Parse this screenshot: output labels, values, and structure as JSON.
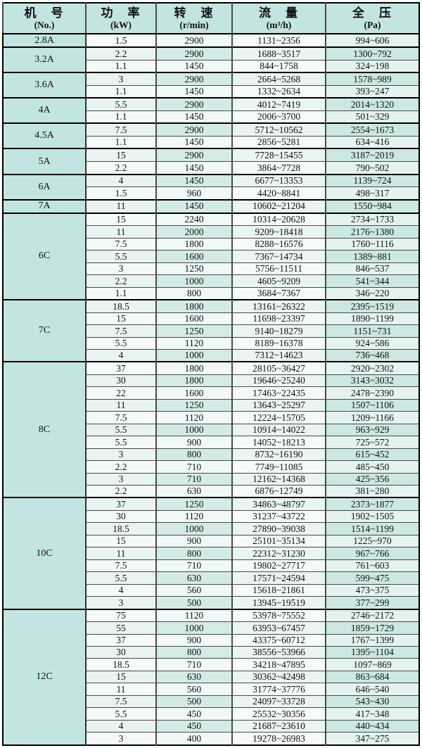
{
  "table": {
    "headers": [
      {
        "title": "机　号",
        "unit": "(No.)"
      },
      {
        "title": "功　率",
        "unit": "(kW)"
      },
      {
        "title": "转　速",
        "unit": "(r/min)"
      },
      {
        "title": "流　量",
        "unit": "(m³/h)"
      },
      {
        "title": "全　压",
        "unit": "(Pa)"
      }
    ],
    "groups": [
      {
        "model": "2.8A",
        "rows": [
          [
            "1.5",
            "2900",
            "1131~2356",
            "994~606"
          ]
        ]
      },
      {
        "model": "3.2A",
        "rows": [
          [
            "2.2",
            "2900",
            "1688~3517",
            "1300~792"
          ],
          [
            "1.1",
            "1450",
            "844~1758",
            "324~198"
          ]
        ]
      },
      {
        "model": "3.6A",
        "rows": [
          [
            "3",
            "2900",
            "2664~5268",
            "1578~989"
          ],
          [
            "1.1",
            "1450",
            "1332~2634",
            "393~247"
          ]
        ]
      },
      {
        "model": "4A",
        "rows": [
          [
            "5.5",
            "2900",
            "4012~7419",
            "2014~1320"
          ],
          [
            "1.1",
            "1450",
            "2006~3700",
            "501~329"
          ]
        ]
      },
      {
        "model": "4.5A",
        "rows": [
          [
            "7.5",
            "2900",
            "5712~10562",
            "2554~1673"
          ],
          [
            "1.1",
            "1450",
            "2856~5281",
            "634~416"
          ]
        ]
      },
      {
        "model": "5A",
        "rows": [
          [
            "15",
            "2900",
            "7728~15455",
            "3187~2019"
          ],
          [
            "2.2",
            "1450",
            "3864~7728",
            "790~502"
          ]
        ]
      },
      {
        "model": "6A",
        "rows": [
          [
            "4",
            "1450",
            "6677~13353",
            "1139~724"
          ],
          [
            "1.5",
            "960",
            "4420~8841",
            "498~317"
          ]
        ]
      },
      {
        "model": "7A",
        "rows": [
          [
            "11",
            "1450",
            "10602~21204",
            "1550~984"
          ]
        ]
      },
      {
        "model": "6C",
        "rows": [
          [
            "15",
            "2240",
            "10314~20628",
            "2734~1733"
          ],
          [
            "11",
            "2000",
            "9209~18418",
            "2176~1380"
          ],
          [
            "7.5",
            "1800",
            "8288~16576",
            "1760~1116"
          ],
          [
            "5.5",
            "1600",
            "7367~14734",
            "1389~881"
          ],
          [
            "3",
            "1250",
            "5756~11511",
            "846~537"
          ],
          [
            "2.2",
            "1000",
            "4605~9209",
            "541~344"
          ],
          [
            "1.1",
            "800",
            "3684~7367",
            "346~220"
          ]
        ]
      },
      {
        "model": "7C",
        "rows": [
          [
            "18.5",
            "1800",
            "13161~26322",
            "2395~1519"
          ],
          [
            "15",
            "1600",
            "11698~23397",
            "1890~1199"
          ],
          [
            "7.5",
            "1250",
            "9140~18279",
            "1151~731"
          ],
          [
            "5.5",
            "1120",
            "8189~16378",
            "924~586"
          ],
          [
            "4",
            "1000",
            "7312~14623",
            "736~468"
          ]
        ]
      },
      {
        "model": "8C",
        "rows": [
          [
            "37",
            "1800",
            "28105~36427",
            "2920~2302"
          ],
          [
            "30",
            "1800",
            "19646~25240",
            "3143~3032"
          ],
          [
            "22",
            "1600",
            "17463~22435",
            "2478~2390"
          ],
          [
            "11",
            "1250",
            "13643~25297",
            "1507~1106"
          ],
          [
            "7.5",
            "1120",
            "12224~15705",
            "1209~1166"
          ],
          [
            "5.5",
            "1000",
            "10914~14022",
            "963~929"
          ],
          [
            "5.5",
            "900",
            "14052~18213",
            "725~572"
          ],
          [
            "3",
            "800",
            "8732~16190",
            "615~452"
          ],
          [
            "2.2",
            "710",
            "7749~11085",
            "485~450"
          ],
          [
            "3",
            "710",
            "12162~14368",
            "425~356"
          ],
          [
            "2.2",
            "630",
            "6876~12749",
            "381~280"
          ]
        ]
      },
      {
        "model": "10C",
        "rows": [
          [
            "37",
            "1250",
            "34863~48797",
            "2373~1877"
          ],
          [
            "30",
            "1120",
            "31237~43722",
            "1902~1505"
          ],
          [
            "18.5",
            "1000",
            "27890~39038",
            "1514~1199"
          ],
          [
            "15",
            "900",
            "25101~35134",
            "1225~970"
          ],
          [
            "11",
            "800",
            "22312~31230",
            "967~766"
          ],
          [
            "7.5",
            "710",
            "19802~27717",
            "761~603"
          ],
          [
            "5.5",
            "630",
            "17571~24594",
            "599~475"
          ],
          [
            "4",
            "560",
            "15618~21861",
            "473~375"
          ],
          [
            "3",
            "500",
            "13945~19519",
            "377~299"
          ]
        ]
      },
      {
        "model": "12C",
        "rows": [
          [
            "75",
            "1120",
            "53978~75552",
            "2746~2172"
          ],
          [
            "55",
            "1000",
            "63953~67457",
            "1859~1729"
          ],
          [
            "37",
            "900",
            "43375~60712",
            "1767~1399"
          ],
          [
            "30",
            "800",
            "38556~53966",
            "1395~1104"
          ],
          [
            "18.5",
            "710",
            "34218~47895",
            "1097~869"
          ],
          [
            "15",
            "630",
            "30362~42498",
            "863~684"
          ],
          [
            "11",
            "560",
            "31774~37776",
            "646~540"
          ],
          [
            "7.5",
            "500",
            "24097~33728",
            "543~430"
          ],
          [
            "5.5",
            "450",
            "25532~30356",
            "417~348"
          ],
          [
            "4",
            "450",
            "21687~23610",
            "440~434"
          ],
          [
            "3",
            "400",
            "19278~26983",
            "347~275"
          ]
        ]
      }
    ],
    "colors": {
      "header_bg": "#c3e5e1",
      "row_light": "#f3faf8",
      "row_cyan": "#cbe8e3",
      "border": "#000000"
    }
  }
}
